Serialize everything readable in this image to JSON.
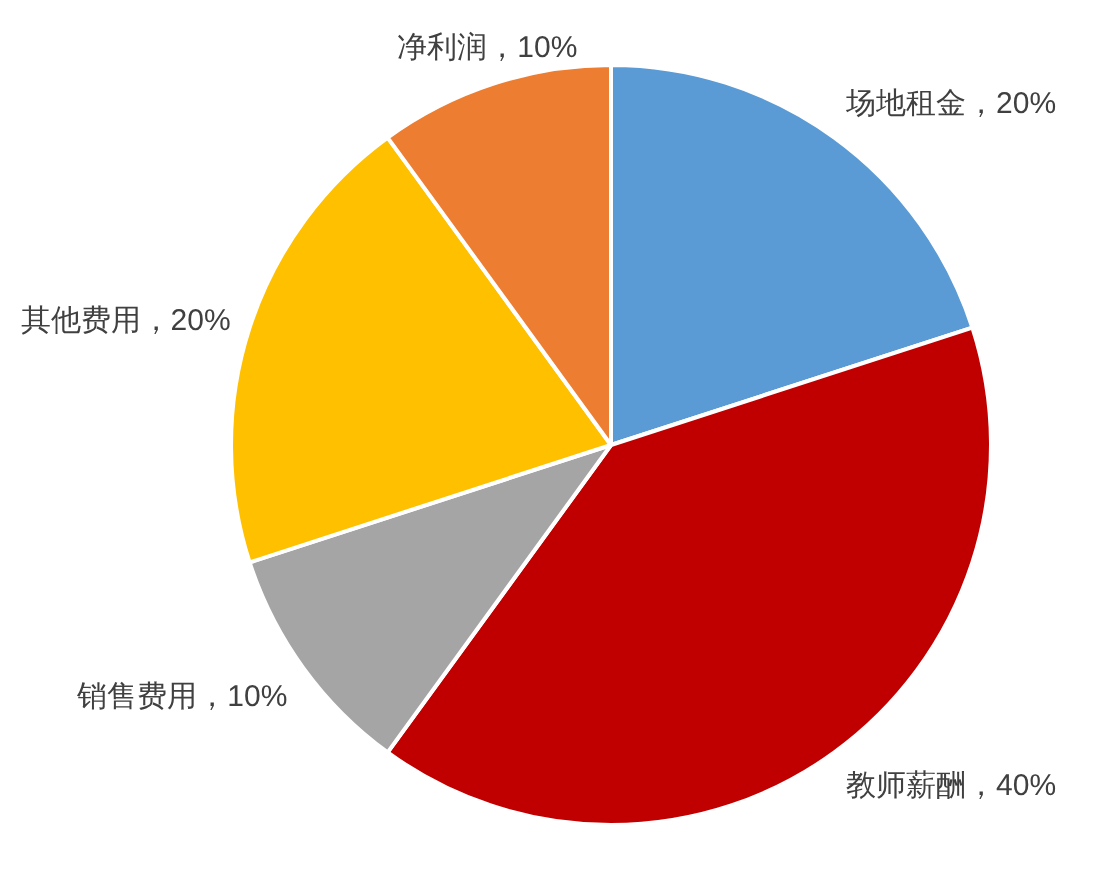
{
  "chart_data": {
    "type": "pie",
    "categories": [
      "场地租金",
      "教师薪酬",
      "销售费用",
      "其他费用",
      "净利润"
    ],
    "values": [
      20,
      40,
      10,
      20,
      10
    ],
    "colors": [
      "#5b9bd5",
      "#c00000",
      "#a5a5a5",
      "#ffc000",
      "#ed7d31"
    ],
    "value_labels": [
      "20%",
      "40%",
      "10%",
      "20%",
      "10%"
    ]
  }
}
